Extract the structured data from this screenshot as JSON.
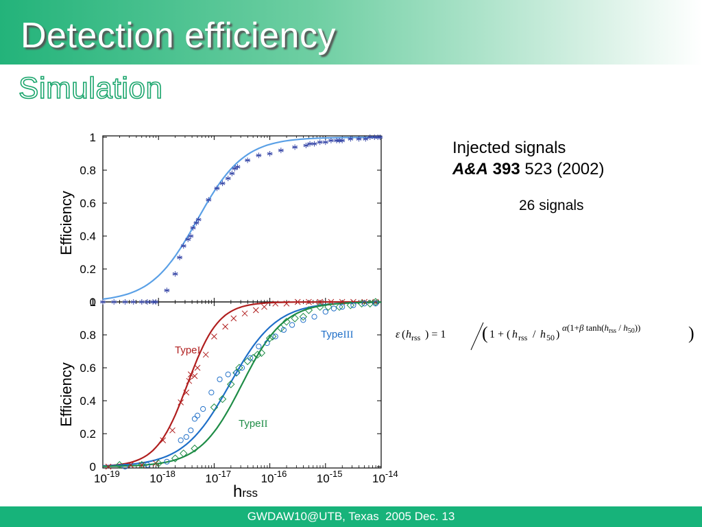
{
  "slide": {
    "title": "Detection efficiency",
    "subtitle": "Simulation",
    "info_line1": "Injected signals",
    "info_journal": "A&A",
    "info_volume": "393",
    "info_rest": " 523 (2002)",
    "signal_count": "26 signals",
    "footer": "GWDAW10@UTB, Texas  2005 Dec. 13"
  },
  "colors": {
    "header_green": "#23b37a",
    "footer_green": "#17b37a",
    "type1": "#b01e1e",
    "type2": "#1e8c46",
    "type3": "#1f6fc8",
    "top_curve": "#5aa0e6",
    "top_marker": "#3848a8"
  },
  "formula": "ε(h_rss) = 1 / (1 + (h_rss / h_50)^(α(1+β tanh(h_rss / h_50))))",
  "chart_data": [
    {
      "type": "scatter",
      "panel": "top",
      "xscale": "log",
      "xlim": [
        "1e-19",
        "1e-14"
      ],
      "ylim": [
        0,
        1
      ],
      "ylabel": "Efficiency",
      "yticks": [
        "0",
        "0.2",
        "0.4",
        "0.6",
        "0.8",
        "1"
      ],
      "series": [
        {
          "marker": "asterisk",
          "x_log10": [
            -19.0,
            -18.8,
            -18.6,
            -18.45,
            -18.3,
            -18.2,
            -18.1,
            -18.05,
            -17.85,
            -17.7,
            -17.62,
            -17.55,
            -17.47,
            -17.42,
            -17.38,
            -17.32,
            -17.28,
            -17.1,
            -16.95,
            -16.85,
            -16.75,
            -16.68,
            -16.63,
            -16.58,
            -16.4,
            -16.2,
            -16.0,
            -15.8,
            -15.55,
            -15.35,
            -15.28,
            -15.2,
            -15.1,
            -15.0,
            -14.9,
            -14.8,
            -14.75,
            -14.7,
            -14.55,
            -14.4,
            -14.28,
            -14.2,
            -14.12,
            -14.06,
            -14.02
          ],
          "y": [
            0,
            0,
            0,
            0,
            0,
            0,
            0,
            0,
            0.07,
            0.17,
            0.27,
            0.34,
            0.38,
            0.4,
            0.45,
            0.48,
            0.5,
            0.62,
            0.69,
            0.72,
            0.75,
            0.78,
            0.81,
            0.82,
            0.86,
            0.89,
            0.9,
            0.92,
            0.94,
            0.95,
            0.96,
            0.96,
            0.97,
            0.97,
            0.98,
            0.98,
            0.98,
            0.98,
            0.99,
            0.99,
            0.99,
            1.0,
            1.0,
            1.0,
            1.0
          ]
        }
      ]
    },
    {
      "type": "scatter",
      "panel": "bottom",
      "xscale": "log",
      "xlim": [
        "1e-19",
        "1e-14"
      ],
      "ylim": [
        0,
        1
      ],
      "xlabel": "hrss",
      "ylabel": "Efficiency",
      "xticks": [
        "10-19",
        "10-18",
        "10-17",
        "10-16",
        "10-15",
        "10-14"
      ],
      "yticks": [
        "0",
        "0.2",
        "0.4",
        "0.6",
        "0.8",
        "1"
      ],
      "series": [
        {
          "name": "TypeI",
          "marker": "x",
          "x_log10": [
            -18.9,
            -18.5,
            -18.3,
            -18.05,
            -17.92,
            -17.75,
            -17.6,
            -17.5,
            -17.45,
            -17.42,
            -17.35,
            -17.3,
            -17.15,
            -17.0,
            -16.8,
            -16.65,
            -16.45,
            -16.25,
            -16.1,
            -15.9,
            -15.7,
            -15.5,
            -15.3,
            -15.1,
            -14.9,
            -14.7,
            -14.5,
            -14.3,
            -14.1
          ],
          "y": [
            0,
            0.01,
            0.01,
            0.02,
            0.16,
            0.22,
            0.39,
            0.45,
            0.52,
            0.56,
            0.55,
            0.6,
            0.68,
            0.79,
            0.85,
            0.9,
            0.93,
            0.95,
            0.97,
            0.99,
            0.99,
            1.0,
            1.0,
            1.0,
            1.0,
            1.0,
            1.0,
            1.0,
            1.0
          ]
        },
        {
          "name": "TypeII",
          "marker": "diamond",
          "x_log10": [
            -18.7,
            -18.3,
            -18.0,
            -17.7,
            -17.55,
            -17.35,
            -17.0,
            -16.85,
            -16.7,
            -16.6,
            -16.55,
            -16.4,
            -16.3,
            -16.22,
            -16.15,
            -16.0,
            -15.95,
            -15.8,
            -15.7,
            -15.55,
            -15.4,
            -15.3,
            -15.1,
            -14.95,
            -14.75,
            -14.55,
            -14.35,
            -14.2,
            -14.1
          ],
          "y": [
            0.01,
            0.01,
            0.02,
            0.05,
            0.08,
            0.11,
            0.36,
            0.41,
            0.5,
            0.57,
            0.6,
            0.64,
            0.66,
            0.68,
            0.69,
            0.78,
            0.79,
            0.84,
            0.88,
            0.9,
            0.91,
            0.95,
            0.97,
            0.97,
            0.97,
            0.98,
            0.99,
            0.99,
            1.0
          ]
        },
        {
          "name": "TypeIII",
          "marker": "circle",
          "x_log10": [
            -18.6,
            -18.2,
            -17.85,
            -17.6,
            -17.5,
            -17.42,
            -17.35,
            -17.3,
            -17.2,
            -17.05,
            -16.9,
            -16.75,
            -16.6,
            -16.5,
            -16.35,
            -16.2,
            -16.05,
            -15.9,
            -15.75,
            -15.6,
            -15.4,
            -15.2,
            -15.0,
            -14.85,
            -14.7,
            -14.5,
            -14.3,
            -14.1
          ],
          "y": [
            0.0,
            0.01,
            0.03,
            0.16,
            0.18,
            0.22,
            0.29,
            0.31,
            0.35,
            0.45,
            0.53,
            0.56,
            0.57,
            0.6,
            0.66,
            0.73,
            0.75,
            0.79,
            0.83,
            0.86,
            0.89,
            0.91,
            0.94,
            0.96,
            0.97,
            0.98,
            0.99,
            0.99
          ]
        }
      ]
    }
  ]
}
